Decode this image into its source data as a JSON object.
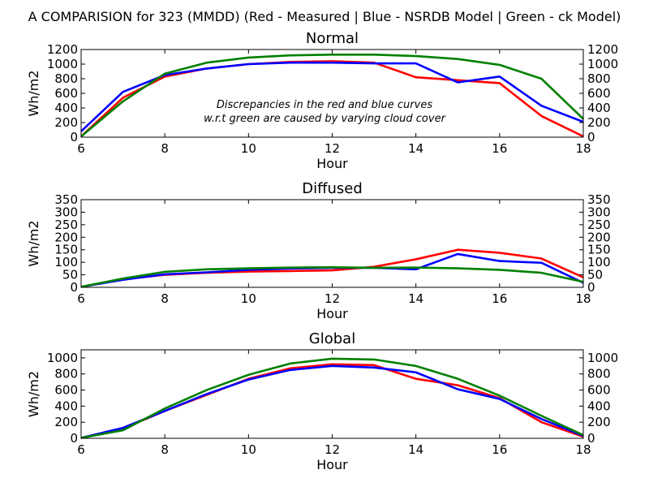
{
  "figure": {
    "suptitle": "A COMPARISION for 323 (MMDD) (Red - Measured | Blue - NSRDB Model | Green - ck Model)"
  },
  "chart_data": [
    {
      "type": "line",
      "title": "Normal",
      "xlabel": "Hour",
      "ylabel": "Wh/m2",
      "xlim": [
        6,
        18
      ],
      "ylim": [
        0,
        1200
      ],
      "xticks": [
        6,
        8,
        10,
        12,
        14,
        16,
        18
      ],
      "yticks": [
        0,
        200,
        400,
        600,
        800,
        1000,
        1200
      ],
      "x": [
        6,
        7,
        8,
        9,
        10,
        11,
        12,
        13,
        14,
        15,
        16,
        17,
        18
      ],
      "annotation": [
        "Discrepancies in the red and blue curves",
        "w.r.t green are caused by varying cloud cover"
      ],
      "series": [
        {
          "color": "#ff0000",
          "values": [
            10,
            540,
            830,
            940,
            1000,
            1030,
            1040,
            1020,
            820,
            780,
            740,
            290,
            10
          ]
        },
        {
          "color": "#0000ff",
          "values": [
            80,
            620,
            850,
            940,
            1000,
            1020,
            1020,
            1010,
            1010,
            750,
            830,
            430,
            210
          ]
        },
        {
          "color": "#008000",
          "values": [
            10,
            490,
            870,
            1020,
            1090,
            1120,
            1130,
            1130,
            1110,
            1070,
            990,
            800,
            250
          ]
        }
      ]
    },
    {
      "type": "line",
      "title": "Diffused",
      "xlabel": "Hour",
      "ylabel": "Wh/m2",
      "xlim": [
        6,
        18
      ],
      "ylim": [
        0,
        350
      ],
      "xticks": [
        6,
        8,
        10,
        12,
        14,
        16,
        18
      ],
      "yticks": [
        0,
        50,
        100,
        150,
        200,
        250,
        300,
        350
      ],
      "x": [
        6,
        7,
        8,
        9,
        10,
        11,
        12,
        13,
        14,
        15,
        16,
        17,
        18
      ],
      "series": [
        {
          "color": "#ff0000",
          "values": [
            2,
            32,
            50,
            58,
            63,
            65,
            68,
            82,
            112,
            150,
            138,
            115,
            40
          ]
        },
        {
          "color": "#0000ff",
          "values": [
            2,
            30,
            52,
            60,
            70,
            75,
            78,
            78,
            72,
            133,
            105,
            98,
            18
          ]
        },
        {
          "color": "#008000",
          "values": [
            2,
            35,
            62,
            72,
            76,
            79,
            80,
            78,
            79,
            76,
            70,
            58,
            22
          ]
        }
      ]
    },
    {
      "type": "line",
      "title": "Global",
      "xlabel": "Hour",
      "ylabel": "Wh/m2",
      "xlim": [
        6,
        18
      ],
      "ylim": [
        0,
        1100
      ],
      "xticks": [
        6,
        8,
        10,
        12,
        14,
        16,
        18
      ],
      "yticks": [
        0,
        200,
        400,
        600,
        800,
        1000
      ],
      "x": [
        6,
        7,
        8,
        9,
        10,
        11,
        12,
        13,
        14,
        15,
        16,
        17,
        18
      ],
      "series": [
        {
          "color": "#ff0000",
          "values": [
            5,
            120,
            340,
            540,
            740,
            870,
            920,
            910,
            740,
            660,
            500,
            200,
            20
          ]
        },
        {
          "color": "#0000ff",
          "values": [
            5,
            130,
            340,
            550,
            730,
            850,
            900,
            880,
            820,
            610,
            490,
            240,
            30
          ]
        },
        {
          "color": "#008000",
          "values": [
            5,
            100,
            370,
            600,
            790,
            930,
            990,
            980,
            900,
            740,
            530,
            280,
            40
          ]
        }
      ]
    }
  ]
}
